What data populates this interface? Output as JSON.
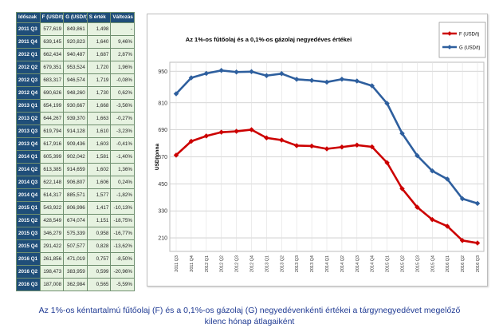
{
  "table": {
    "headers": [
      "Időszak",
      "F (USD/t)",
      "G (USD/t)",
      "S érték",
      "Változás"
    ],
    "rows": [
      [
        "2011 Q3",
        "577,619",
        "849,861",
        "1,498",
        "-"
      ],
      [
        "2011 Q4",
        "639,145",
        "920,823",
        "1,640",
        "9,46%"
      ],
      [
        "2012 Q1",
        "662,434",
        "940,487",
        "1,687",
        "2,87%"
      ],
      [
        "2012 Q2",
        "679,351",
        "953,524",
        "1,720",
        "1,96%"
      ],
      [
        "2012 Q3",
        "683,317",
        "946,574",
        "1,719",
        "-0,08%"
      ],
      [
        "2012 Q4",
        "690,626",
        "948,260",
        "1,730",
        "0,62%"
      ],
      [
        "2013 Q1",
        "654,199",
        "930,667",
        "1,668",
        "-3,56%"
      ],
      [
        "2013 Q2",
        "644,267",
        "939,370",
        "1,663",
        "-0,27%"
      ],
      [
        "2013 Q3",
        "619,794",
        "914,128",
        "1,610",
        "-3,23%"
      ],
      [
        "2013 Q4",
        "617,916",
        "909,436",
        "1,603",
        "-0,41%"
      ],
      [
        "2014 Q1",
        "605,399",
        "902,042",
        "1,581",
        "-1,40%"
      ],
      [
        "2014 Q2",
        "613,385",
        "914,659",
        "1,602",
        "1,36%"
      ],
      [
        "2014 Q3",
        "622,148",
        "906,807",
        "1,606",
        "0,24%"
      ],
      [
        "2014 Q4",
        "614,317",
        "885,571",
        "1,577",
        "-1,82%"
      ],
      [
        "2015 Q1",
        "543,922",
        "806,996",
        "1,417",
        "-10,13%"
      ],
      [
        "2015 Q2",
        "428,549",
        "674,074",
        "1,151",
        "-18,75%"
      ],
      [
        "2015 Q3",
        "346,279",
        "575,339",
        "0,958",
        "-16,77%"
      ],
      [
        "2015 Q4",
        "291,422",
        "507,577",
        "0,828",
        "-13,62%"
      ],
      [
        "2016 Q1",
        "261,856",
        "471,019",
        "0,757",
        "-8,50%"
      ],
      [
        "2016 Q2",
        "198,473",
        "383,959",
        "0,599",
        "-20,96%"
      ],
      [
        "2016 Q3",
        "187,008",
        "362,984",
        "0,565",
        "-5,59%"
      ]
    ]
  },
  "caption": {
    "line1": "Az 1%-os kéntartalmú fűtőolaj (F) és a 0,1%-os gázolaj (G) negyedévenkénti értékei a tárgynegyedévet megelőző",
    "line2": "kilenc hónap átlagaiként"
  },
  "chart_data": {
    "type": "line",
    "title": "Az 1%-os fűtőolaj és a 0,1%-os gázolaj negyedéves értékei",
    "ylabel": "USD/tonna",
    "xlabel": "",
    "ylim": [
      150,
      990
    ],
    "yticks": [
      210,
      330,
      450,
      570,
      690,
      810,
      950
    ],
    "grid": true,
    "legend_position": "top-right",
    "categories": [
      "2011 Q3",
      "2011 Q4",
      "2012 Q1",
      "2012 Q2",
      "2012 Q3",
      "2012 Q4",
      "2013 Q1",
      "2013 Q2",
      "2013 Q3",
      "2013 Q4",
      "2014 Q1",
      "2014 Q2",
      "2014 Q3",
      "2014 Q4",
      "2015 Q1",
      "2015 Q2",
      "2015 Q3",
      "2015 Q4",
      "2016 Q1",
      "2016 Q2",
      "2016 Q3"
    ],
    "series": [
      {
        "name": "F (USD/t)",
        "color": "#cc0000",
        "values": [
          577.619,
          639.145,
          662.434,
          679.351,
          683.317,
          690.626,
          654.199,
          644.267,
          619.794,
          617.916,
          605.399,
          613.385,
          622.148,
          614.317,
          543.922,
          428.549,
          346.279,
          291.422,
          261.856,
          198.473,
          187.008
        ]
      },
      {
        "name": "G (USD/t)",
        "color": "#2e5f9e",
        "values": [
          849.861,
          920.823,
          940.487,
          953.524,
          946.574,
          948.26,
          930.667,
          939.37,
          914.128,
          909.436,
          902.042,
          914.659,
          906.807,
          885.571,
          806.996,
          674.074,
          575.339,
          507.577,
          471.019,
          383.959,
          362.984
        ]
      }
    ]
  }
}
